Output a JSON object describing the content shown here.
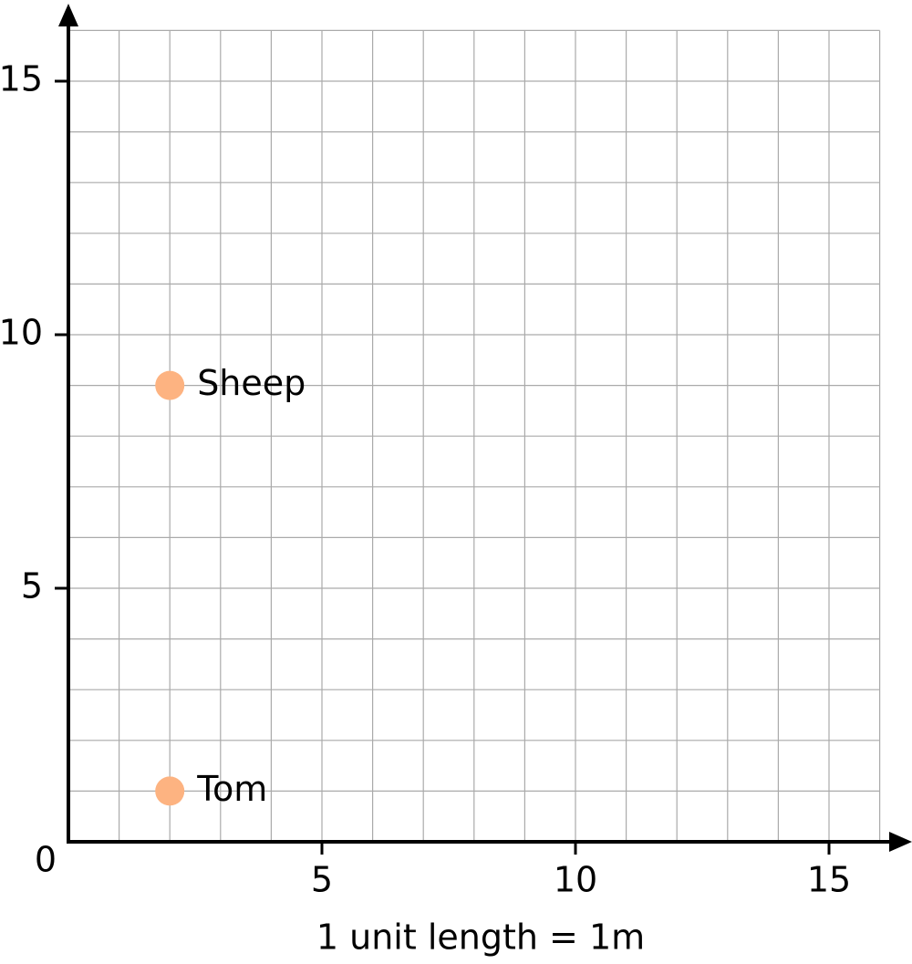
{
  "chart_data": {
    "type": "scatter",
    "x": [
      2,
      2
    ],
    "values": [
      9,
      1
    ],
    "labels": [
      "Sheep",
      "Tom"
    ],
    "color": "#fdb381",
    "xlim": [
      0,
      16
    ],
    "ylim": [
      0,
      16
    ],
    "xticks": [
      0,
      5,
      10,
      15
    ],
    "yticks": [
      5,
      10,
      15
    ],
    "grid": true,
    "grid_step": 1,
    "xlabel": "1 unit length = 1m"
  }
}
